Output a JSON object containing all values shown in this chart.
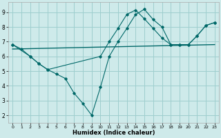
{
  "xlabel": "Humidex (Indice chaleur)",
  "background_color": "#ceeaea",
  "grid_color": "#9ecece",
  "line_color": "#006868",
  "xlim": [
    -0.5,
    23.5
  ],
  "ylim": [
    1.5,
    9.7
  ],
  "xticks": [
    0,
    1,
    2,
    3,
    4,
    5,
    6,
    7,
    8,
    9,
    10,
    11,
    12,
    13,
    14,
    15,
    16,
    17,
    18,
    19,
    20,
    21,
    22,
    23
  ],
  "yticks": [
    2,
    3,
    4,
    5,
    6,
    7,
    8,
    9
  ],
  "line1_x": [
    0,
    1,
    2,
    3,
    4,
    5,
    6,
    7,
    8,
    9,
    10,
    11,
    12,
    13,
    14,
    15,
    16,
    17,
    18,
    19,
    20,
    21,
    22,
    23
  ],
  "line1_y": [
    6.8,
    6.5,
    6.0,
    5.5,
    5.1,
    4.8,
    4.5,
    3.5,
    2.8,
    2.0,
    3.9,
    6.0,
    7.0,
    7.9,
    8.85,
    9.2,
    8.5,
    8.0,
    6.8,
    6.8,
    6.8,
    7.4,
    8.1,
    8.3
  ],
  "line2_x": [
    0,
    2,
    3,
    4,
    10,
    11,
    12,
    13,
    14,
    15,
    16,
    17,
    18,
    19,
    20,
    21,
    22,
    23
  ],
  "line2_y": [
    6.8,
    6.0,
    5.5,
    5.1,
    6.0,
    7.0,
    7.9,
    8.85,
    9.15,
    8.55,
    7.9,
    7.25,
    6.8,
    6.8,
    6.8,
    7.4,
    8.1,
    8.3
  ],
  "line3_x": [
    0,
    23
  ],
  "line3_y": [
    6.5,
    6.8
  ]
}
